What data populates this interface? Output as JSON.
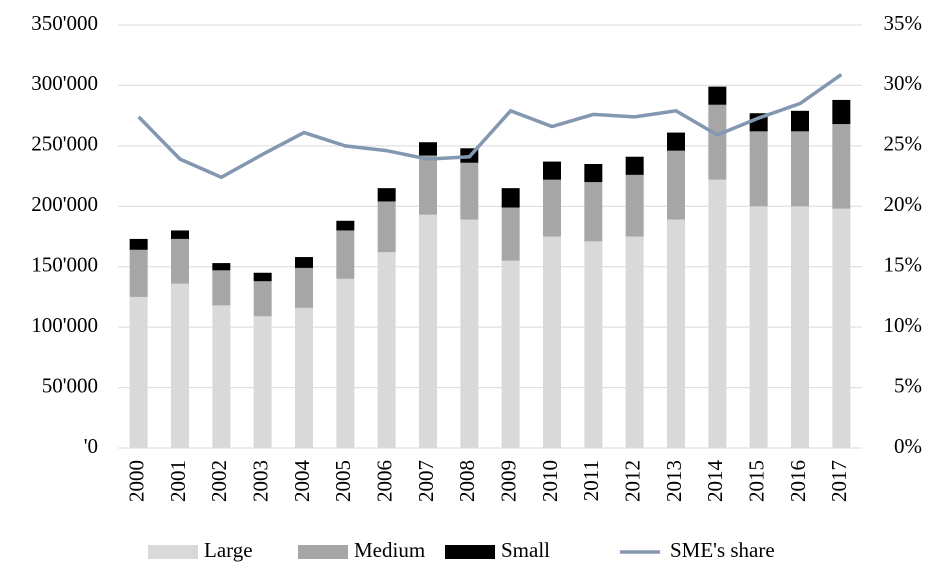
{
  "chart_data": {
    "type": "bar",
    "categories": [
      "2000",
      "2001",
      "2002",
      "2003",
      "2004",
      "2005",
      "2006",
      "2007",
      "2008",
      "2009",
      "2010",
      "2011",
      "2012",
      "2013",
      "2014",
      "2015",
      "2016",
      "2017"
    ],
    "series": [
      {
        "name": "Large",
        "color": "#d9d9d9",
        "values": [
          125000,
          136000,
          118000,
          109000,
          116000,
          140000,
          162000,
          193000,
          189000,
          155000,
          175000,
          171000,
          175000,
          189000,
          222000,
          200000,
          200000,
          198000
        ]
      },
      {
        "name": "Medium",
        "color": "#a6a6a6",
        "values": [
          39000,
          37000,
          29000,
          29000,
          33000,
          40000,
          42000,
          49000,
          47000,
          44000,
          47000,
          49000,
          51000,
          57000,
          62000,
          62000,
          62000,
          70000
        ]
      },
      {
        "name": "Small",
        "color": "#000000",
        "values": [
          9000,
          7000,
          6000,
          7000,
          9000,
          8000,
          11000,
          11000,
          12000,
          16000,
          15000,
          15000,
          15000,
          15000,
          15000,
          15000,
          17000,
          20000
        ]
      },
      {
        "name": "SME's share",
        "color": "#8497b0",
        "type": "line",
        "axis": "y2",
        "values": [
          27.4,
          23.9,
          22.4,
          24.3,
          26.1,
          25.0,
          24.6,
          23.9,
          24.1,
          27.9,
          26.6,
          27.6,
          27.4,
          27.9,
          25.9,
          27.3,
          28.5,
          30.9
        ]
      }
    ],
    "stacked": true,
    "ylim": [
      0,
      350000
    ],
    "yticks": [
      {
        "value": 0,
        "label": "'0"
      },
      {
        "value": 50000,
        "label": "50'000"
      },
      {
        "value": 100000,
        "label": "100'000"
      },
      {
        "value": 150000,
        "label": "150'000"
      },
      {
        "value": 200000,
        "label": "200'000"
      },
      {
        "value": 250000,
        "label": "250'000"
      },
      {
        "value": 300000,
        "label": "300'000"
      },
      {
        "value": 350000,
        "label": "350'000"
      }
    ],
    "y2lim": [
      0,
      35
    ],
    "y2ticks": [
      {
        "value": 0,
        "label": "0%"
      },
      {
        "value": 5,
        "label": "5%"
      },
      {
        "value": 10,
        "label": "10%"
      },
      {
        "value": 15,
        "label": "15%"
      },
      {
        "value": 20,
        "label": "20%"
      },
      {
        "value": 25,
        "label": "25%"
      },
      {
        "value": 30,
        "label": "30%"
      },
      {
        "value": 35,
        "label": "35%"
      }
    ],
    "grid": true,
    "legend": "bottom"
  }
}
